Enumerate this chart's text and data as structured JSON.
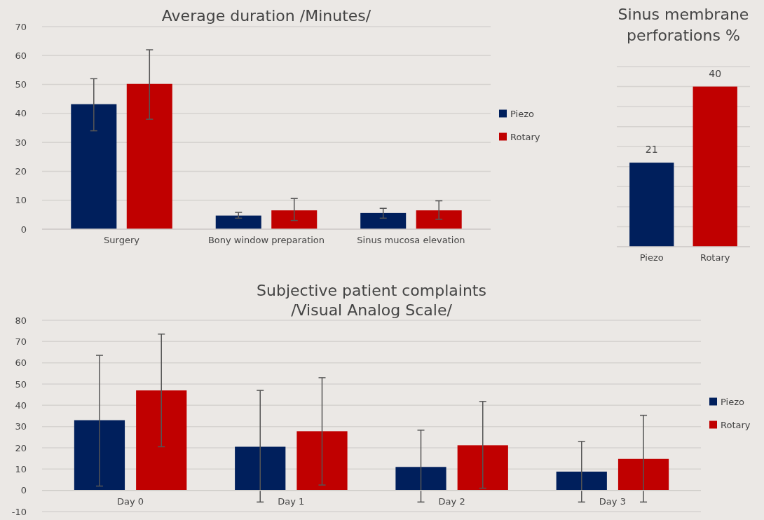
{
  "chart_data": [
    {
      "type": "bar",
      "title": "Average duration /Minutes/",
      "categories": [
        "Surgery",
        "Bony window preparation",
        "Sinus mucosa elevation"
      ],
      "series": [
        {
          "name": "Piezo",
          "color": "#001f5c",
          "values": [
            43.2,
            4.7,
            5.6
          ],
          "errors": [
            [
              34,
              52
            ],
            [
              3.8,
              5.8
            ],
            [
              3.8,
              7.2
            ]
          ]
        },
        {
          "name": "Rotary",
          "color": "#c00000",
          "values": [
            50.2,
            6.5,
            6.5
          ],
          "errors": [
            [
              38,
              62
            ],
            [
              3,
              10.6
            ],
            [
              3.4,
              9.8
            ]
          ]
        }
      ],
      "ylim": [
        0,
        70
      ],
      "yticks": [
        0,
        10,
        20,
        30,
        40,
        50,
        60,
        70
      ],
      "grid": "y",
      "legend": "right"
    },
    {
      "type": "bar",
      "title": "Sinus membrane\nperforations %",
      "categories": [
        "Piezo",
        "Rotary"
      ],
      "values": [
        21,
        40
      ],
      "colors": [
        "#001f5c",
        "#c00000"
      ],
      "data_labels": true,
      "ylim": [
        0,
        45
      ],
      "yticks": [
        {
          "value": 0,
          "label": null
        },
        {
          "value": 5,
          "label": null
        },
        {
          "value": 10,
          "label": null
        },
        {
          "value": 15,
          "label": null
        },
        {
          "value": 20,
          "label": null
        },
        {
          "value": 25,
          "label": null
        },
        {
          "value": 30,
          "label": null
        },
        {
          "value": 35,
          "label": null
        },
        {
          "value": 40,
          "label": null
        },
        {
          "value": 45,
          "label": null
        }
      ],
      "grid": "y",
      "tick_labels": "x"
    },
    {
      "type": "bar",
      "title": "Subjective patient complaints\n/Visual Analog Scale/",
      "categories": [
        "Day 0",
        "Day 1",
        "Day 2",
        "Day 3"
      ],
      "series": [
        {
          "name": "Piezo",
          "color": "#001f5c",
          "values": [
            33,
            20.5,
            11,
            8.8
          ],
          "errors": [
            [
              2,
              63.5
            ],
            [
              -5.5,
              47
            ],
            [
              -5.5,
              28.3
            ],
            [
              -5.5,
              23
            ]
          ]
        },
        {
          "name": "Rotary",
          "color": "#c00000",
          "values": [
            47,
            27.8,
            21.2,
            14.8
          ],
          "errors": [
            [
              20.5,
              73.5
            ],
            [
              2.5,
              53
            ],
            [
              1,
              41.8
            ],
            [
              -5.5,
              35.3
            ]
          ]
        }
      ],
      "ylim": [
        -10,
        80
      ],
      "yticks": [
        -10,
        0,
        10,
        20,
        30,
        40,
        50,
        60,
        70,
        80
      ],
      "grid": "y",
      "legend": "right"
    }
  ]
}
